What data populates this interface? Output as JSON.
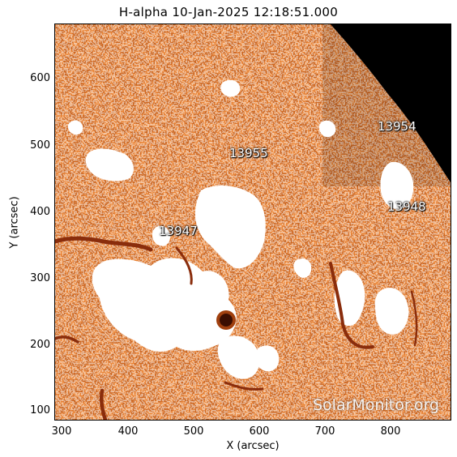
{
  "title": "H-alpha 10-Jan-2025 12:18:51.000",
  "axes": {
    "x_label": "X (arcsec)",
    "y_label": "Y (arcsec)",
    "x_ticks": [
      "300",
      "400",
      "500",
      "600",
      "700",
      "800"
    ],
    "y_ticks": [
      "600",
      "500",
      "400",
      "300",
      "200",
      "100"
    ]
  },
  "regions": [
    "13954",
    "13955",
    "13948",
    "13947"
  ],
  "watermark": "SolarMonitor.org",
  "colors": {
    "background_orange": "#e98436",
    "plage_white": "#ffffff",
    "filament_dark": "#8a2d0c",
    "space_black": "#000000"
  }
}
